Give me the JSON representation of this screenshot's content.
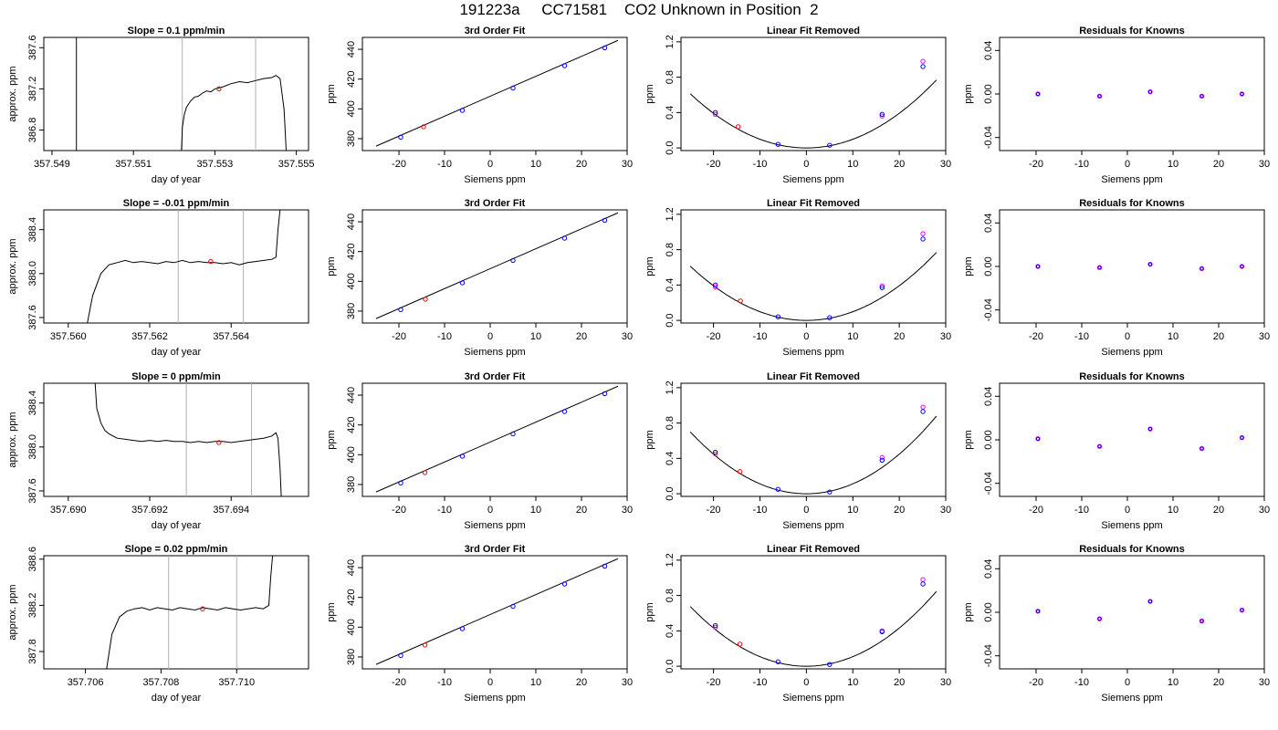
{
  "title": "191223a     CC71581    CO2 Unknown in Position  2",
  "colors": {
    "known": "#0000ff",
    "unknown": "#ff0000",
    "reference": "#ff00ff",
    "axis": "#000000",
    "marker_line": "#b0b0b0"
  },
  "chart_data": [
    {
      "row": 0,
      "time_panel": {
        "type": "line",
        "title": "Slope =  0.1  ppm/min",
        "xlabel": "day of year",
        "ylabel": "approx. ppm",
        "xlim": [
          357.5488,
          357.5553
        ],
        "ylim": [
          386.6,
          387.7
        ],
        "xticks": [
          "357.549",
          "357.551",
          "357.553",
          "357.555"
        ],
        "yticks": [
          "386.8",
          "387.2",
          "387.6"
        ],
        "vlines_black": [
          357.5496
        ],
        "vlines_gray": [
          357.5522,
          357.554
        ],
        "x": [
          357.55218,
          357.5522,
          357.55225,
          357.5523,
          357.5524,
          357.5525,
          357.5526,
          357.5527,
          357.5528,
          357.5529,
          357.553,
          357.5532,
          357.5534,
          357.5536,
          357.5538,
          357.554,
          357.5542,
          357.5544,
          357.5545,
          357.5546,
          357.5547,
          357.55475
        ],
        "y": [
          386.6,
          386.82,
          386.95,
          387.02,
          387.08,
          387.12,
          387.13,
          387.16,
          387.18,
          387.17,
          387.2,
          387.22,
          387.25,
          387.27,
          387.26,
          387.28,
          387.3,
          387.31,
          387.33,
          387.3,
          387.0,
          386.6
        ],
        "unknown_point": {
          "x": 357.5531,
          "y": 387.2
        }
      },
      "fit_panel": {
        "type": "scatter",
        "title": "3rd Order Fit",
        "xlabel": "Siemens ppm",
        "ylabel": "ppm",
        "xlim": [
          -28,
          30
        ],
        "ylim": [
          372,
          448
        ],
        "xticks": [
          -20,
          -10,
          0,
          10,
          20,
          30
        ],
        "yticks": [
          380,
          400,
          420,
          440
        ],
        "line": {
          "x": [
            -25,
            28
          ],
          "y": [
            375,
            446
          ]
        },
        "knowns": {
          "x": [
            -19.6,
            -6.1,
            5.0,
            16.3,
            25.1
          ],
          "y": [
            381,
            399,
            414,
            429,
            441
          ]
        },
        "unknown": {
          "x": -14.6,
          "y": 388
        }
      },
      "linear_removed_panel": {
        "type": "scatter",
        "title": "Linear Fit Removed",
        "xlabel": "Siemens ppm",
        "ylabel": "ppm",
        "xlim": [
          -27,
          30
        ],
        "ylim": [
          -0.03,
          1.25
        ],
        "xticks": [
          -20,
          -10,
          0,
          10,
          20,
          30
        ],
        "yticks": [
          "0.0",
          "0.4",
          "0.8",
          "1.2"
        ],
        "curve_a": 0.00098,
        "knowns": {
          "x": [
            -19.6,
            -6.1,
            5.0,
            16.3,
            25.1
          ],
          "y": [
            0.4,
            0.04,
            0.03,
            0.38,
            0.92
          ]
        },
        "references": {
          "x": [
            -19.6,
            16.3,
            25.1
          ],
          "y": [
            0.38,
            0.36,
            0.98
          ]
        },
        "unknown": {
          "x": -14.7,
          "y": 0.24
        }
      },
      "residuals_panel": {
        "type": "scatter",
        "title": "Residuals for Knowns",
        "xlabel": "Siemens ppm",
        "ylabel": "ppm",
        "xlim": [
          -28,
          30
        ],
        "ylim": [
          -0.052,
          0.052
        ],
        "xticks": [
          -20,
          -10,
          0,
          10,
          20,
          30
        ],
        "yticks": [
          "-0.04",
          "0.00",
          "0.04"
        ],
        "knowns": {
          "x": [
            -19.6,
            -6.1,
            5.0,
            16.3,
            25.1
          ],
          "y": [
            0.0,
            -0.002,
            0.002,
            -0.002,
            0.0
          ]
        }
      }
    },
    {
      "row": 1,
      "time_panel": {
        "type": "line",
        "title": "Slope =  -0.01  ppm/min",
        "xlabel": "day of year",
        "ylabel": "approx. ppm",
        "xlim": [
          357.5594,
          357.5659
        ],
        "ylim": [
          387.55,
          388.58
        ],
        "xticks": [
          "357.560",
          "357.562",
          "357.564"
        ],
        "yticks": [
          "387.6",
          "388.0",
          "388.4"
        ],
        "vlines_black": [],
        "vlines_gray": [
          357.5627,
          357.5643
        ],
        "x": [
          357.56047,
          357.5606,
          357.5608,
          357.561,
          357.5612,
          357.5614,
          357.5616,
          357.5618,
          357.562,
          357.5622,
          357.5624,
          357.5626,
          357.5628,
          357.563,
          357.5632,
          357.5634,
          357.5636,
          357.5638,
          357.564,
          357.5642,
          357.5644,
          357.5646,
          357.5648,
          357.565,
          357.5651,
          357.56515,
          357.5652
        ],
        "y": [
          387.55,
          387.8,
          388.0,
          388.08,
          388.1,
          388.12,
          388.1,
          388.11,
          388.1,
          388.09,
          388.11,
          388.1,
          388.12,
          388.1,
          388.11,
          388.1,
          388.1,
          388.09,
          388.1,
          388.08,
          388.1,
          388.11,
          388.12,
          388.13,
          388.15,
          388.4,
          388.58
        ],
        "unknown_point": {
          "x": 357.5635,
          "y": 388.11
        }
      },
      "fit_panel": {
        "type": "scatter",
        "title": "3rd Order Fit",
        "xlabel": "Siemens ppm",
        "ylabel": "ppm",
        "xlim": [
          -28,
          30
        ],
        "ylim": [
          372,
          448
        ],
        "xticks": [
          -20,
          -10,
          0,
          10,
          20,
          30
        ],
        "yticks": [
          380,
          400,
          420,
          440
        ],
        "line": {
          "x": [
            -25,
            28
          ],
          "y": [
            375,
            446
          ]
        },
        "knowns": {
          "x": [
            -19.6,
            -6.1,
            5.0,
            16.3,
            25.1
          ],
          "y": [
            381,
            399,
            414,
            429,
            441
          ]
        },
        "unknown": {
          "x": -14.2,
          "y": 388
        }
      },
      "linear_removed_panel": {
        "type": "scatter",
        "title": "Linear Fit Removed",
        "xlabel": "Siemens ppm",
        "ylabel": "ppm",
        "xlim": [
          -27,
          30
        ],
        "ylim": [
          -0.03,
          1.25
        ],
        "xticks": [
          -20,
          -10,
          0,
          10,
          20,
          30
        ],
        "yticks": [
          "0.0",
          "0.4",
          "0.8",
          "1.2"
        ],
        "curve_a": 0.00098,
        "knowns": {
          "x": [
            -19.6,
            -6.1,
            5.0,
            16.3,
            25.1
          ],
          "y": [
            0.4,
            0.04,
            0.03,
            0.37,
            0.92
          ]
        },
        "references": {
          "x": [
            -19.6,
            16.3,
            25.1
          ],
          "y": [
            0.38,
            0.39,
            0.98
          ]
        },
        "unknown": {
          "x": -14.2,
          "y": 0.22
        }
      },
      "residuals_panel": {
        "type": "scatter",
        "title": "Residuals for Knowns",
        "xlabel": "Siemens ppm",
        "ylabel": "ppm",
        "xlim": [
          -28,
          30
        ],
        "ylim": [
          -0.052,
          0.052
        ],
        "xticks": [
          -20,
          -10,
          0,
          10,
          20,
          30
        ],
        "yticks": [
          "-0.04",
          "0.00",
          "0.04"
        ],
        "knowns": {
          "x": [
            -19.6,
            -6.1,
            5.0,
            16.3,
            25.1
          ],
          "y": [
            0.0,
            -0.001,
            0.002,
            -0.002,
            0.0
          ]
        }
      }
    },
    {
      "row": 2,
      "time_panel": {
        "type": "line",
        "title": "Slope =  0  ppm/min",
        "xlabel": "day of year",
        "ylabel": "approx. ppm",
        "xlim": [
          357.6894,
          357.6959
        ],
        "ylim": [
          387.55,
          388.58
        ],
        "xticks": [
          "357.690",
          "357.692",
          "357.694"
        ],
        "yticks": [
          "387.6",
          "388.0",
          "388.4"
        ],
        "vlines_black": [],
        "vlines_gray": [
          357.6929,
          357.6945
        ],
        "x": [
          357.69066,
          357.6907,
          357.6908,
          357.6909,
          357.691,
          357.6912,
          357.6914,
          357.6916,
          357.6918,
          357.692,
          357.6922,
          357.6924,
          357.6926,
          357.6928,
          357.693,
          357.6932,
          357.6934,
          357.6936,
          357.6938,
          357.694,
          357.6942,
          357.6944,
          357.6946,
          357.6948,
          357.695,
          357.6951,
          357.69515,
          357.6952,
          357.69523
        ],
        "y": [
          388.58,
          388.35,
          388.22,
          388.15,
          388.12,
          388.08,
          388.07,
          388.06,
          388.05,
          388.06,
          388.05,
          388.06,
          388.05,
          388.05,
          388.04,
          388.05,
          388.04,
          388.05,
          388.05,
          388.04,
          388.05,
          388.06,
          388.07,
          388.08,
          388.1,
          388.13,
          388.08,
          387.8,
          387.55
        ],
        "unknown_point": {
          "x": 357.6937,
          "y": 388.04
        }
      },
      "fit_panel": {
        "type": "scatter",
        "title": "3rd Order Fit",
        "xlabel": "Siemens ppm",
        "ylabel": "ppm",
        "xlim": [
          -28,
          30
        ],
        "ylim": [
          372,
          448
        ],
        "xticks": [
          -20,
          -10,
          0,
          10,
          20,
          30
        ],
        "yticks": [
          380,
          400,
          420,
          440
        ],
        "line": {
          "x": [
            -25,
            28
          ],
          "y": [
            375,
            446
          ]
        },
        "knowns": {
          "x": [
            -19.6,
            -6.1,
            5.0,
            16.3,
            25.1
          ],
          "y": [
            381,
            399,
            414,
            429,
            441
          ]
        },
        "unknown": {
          "x": -14.3,
          "y": 388
        }
      },
      "linear_removed_panel": {
        "type": "scatter",
        "title": "Linear Fit Removed",
        "xlabel": "Siemens ppm",
        "ylabel": "ppm",
        "xlim": [
          -27,
          30
        ],
        "ylim": [
          -0.03,
          1.25
        ],
        "xticks": [
          -20,
          -10,
          0,
          10,
          20,
          30
        ],
        "yticks": [
          "0.0",
          "0.4",
          "0.8",
          "1.2"
        ],
        "curve_a": 0.00112,
        "knowns": {
          "x": [
            -19.6,
            -6.1,
            5.0,
            16.3,
            25.1
          ],
          "y": [
            0.47,
            0.05,
            0.02,
            0.38,
            0.93
          ]
        },
        "references": {
          "x": [
            -19.6,
            16.3,
            25.1
          ],
          "y": [
            0.45,
            0.41,
            0.98
          ]
        },
        "unknown": {
          "x": -14.3,
          "y": 0.25
        }
      },
      "residuals_panel": {
        "type": "scatter",
        "title": "Residuals for Knowns",
        "xlabel": "Siemens ppm",
        "ylabel": "ppm",
        "xlim": [
          -28,
          30
        ],
        "ylim": [
          -0.052,
          0.052
        ],
        "xticks": [
          -20,
          -10,
          0,
          10,
          20,
          30
        ],
        "yticks": [
          "-0.04",
          "0.00",
          "0.04"
        ],
        "knowns": {
          "x": [
            -19.6,
            -6.1,
            5.0,
            16.3,
            25.1
          ],
          "y": [
            0.001,
            -0.006,
            0.01,
            -0.008,
            0.002
          ]
        }
      }
    },
    {
      "row": 3,
      "time_panel": {
        "type": "line",
        "title": "Slope =  0.02  ppm/min",
        "xlabel": "day of year",
        "ylabel": "approx. ppm",
        "xlim": [
          357.7049,
          357.7119
        ],
        "ylim": [
          387.65,
          388.63
        ],
        "xticks": [
          "357.706",
          "357.708",
          "357.710"
        ],
        "yticks": [
          "387.8",
          "388.2",
          "388.6"
        ],
        "vlines_black": [],
        "vlines_gray": [
          357.7082,
          357.71
        ],
        "x": [
          357.70656,
          357.7067,
          357.7069,
          357.7071,
          357.7073,
          357.7075,
          357.7077,
          357.7079,
          357.7081,
          357.7083,
          357.7085,
          357.7087,
          357.7089,
          357.7091,
          357.7093,
          357.7095,
          357.7097,
          357.7099,
          357.7101,
          357.7103,
          357.7105,
          357.7107,
          357.71085,
          357.7109,
          357.71095
        ],
        "y": [
          387.65,
          387.95,
          388.1,
          388.15,
          388.17,
          388.18,
          388.16,
          388.18,
          388.17,
          388.16,
          388.18,
          388.17,
          388.16,
          388.18,
          388.17,
          388.16,
          388.18,
          388.17,
          388.16,
          388.17,
          388.18,
          388.17,
          388.2,
          388.45,
          388.63
        ],
        "unknown_point": {
          "x": 357.7091,
          "y": 388.17
        }
      },
      "fit_panel": {
        "type": "scatter",
        "title": "3rd Order Fit",
        "xlabel": "Siemens ppm",
        "ylabel": "ppm",
        "xlim": [
          -28,
          30
        ],
        "ylim": [
          372,
          448
        ],
        "xticks": [
          -20,
          -10,
          0,
          10,
          20,
          30
        ],
        "yticks": [
          380,
          400,
          420,
          440
        ],
        "line": {
          "x": [
            -25,
            28
          ],
          "y": [
            375,
            446
          ]
        },
        "knowns": {
          "x": [
            -19.6,
            -6.1,
            5.0,
            16.3,
            25.1
          ],
          "y": [
            381,
            399,
            414,
            429,
            441
          ]
        },
        "unknown": {
          "x": -14.3,
          "y": 388
        }
      },
      "linear_removed_panel": {
        "type": "scatter",
        "title": "Linear Fit Removed",
        "xlabel": "Siemens ppm",
        "ylabel": "ppm",
        "xlim": [
          -27,
          30
        ],
        "ylim": [
          -0.03,
          1.25
        ],
        "xticks": [
          -20,
          -10,
          0,
          10,
          20,
          30
        ],
        "yticks": [
          "0.0",
          "0.4",
          "0.8",
          "1.2"
        ],
        "curve_a": 0.00108,
        "knowns": {
          "x": [
            -19.6,
            -6.1,
            5.0,
            16.3,
            25.1
          ],
          "y": [
            0.46,
            0.05,
            0.02,
            0.39,
            0.93
          ]
        },
        "references": {
          "x": [
            -19.6,
            16.3,
            25.1
          ],
          "y": [
            0.44,
            0.4,
            0.98
          ]
        },
        "unknown": {
          "x": -14.3,
          "y": 0.25
        }
      },
      "residuals_panel": {
        "type": "scatter",
        "title": "Residuals for Knowns",
        "xlabel": "Siemens ppm",
        "ylabel": "ppm",
        "xlim": [
          -28,
          30
        ],
        "ylim": [
          -0.052,
          0.052
        ],
        "xticks": [
          -20,
          -10,
          0,
          10,
          20,
          30
        ],
        "yticks": [
          "-0.04",
          "0.00",
          "0.04"
        ],
        "knowns": {
          "x": [
            -19.6,
            -6.1,
            5.0,
            16.3,
            25.1
          ],
          "y": [
            0.001,
            -0.006,
            0.01,
            -0.008,
            0.002
          ]
        }
      }
    }
  ]
}
